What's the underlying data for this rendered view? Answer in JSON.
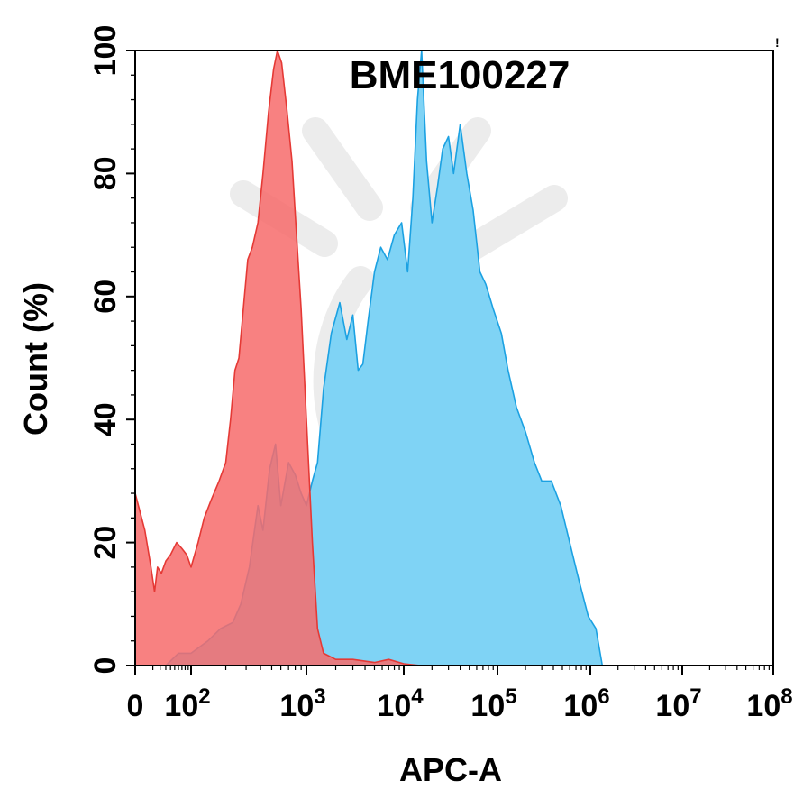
{
  "chart_data": {
    "type": "area",
    "title": "BME100227",
    "xlabel": "APC-A",
    "ylabel": "Count  (%)",
    "x_scale": "biexponential",
    "xlim": [
      0,
      100000000
    ],
    "ylim": [
      0,
      100
    ],
    "y_ticks": [
      "0",
      "20",
      "40",
      "60",
      "80",
      "100"
    ],
    "x_ticks": [
      {
        "value": 0,
        "base": "0",
        "exp": ""
      },
      {
        "value": 100,
        "base": "10",
        "exp": "2"
      },
      {
        "value": 1000,
        "base": "10",
        "exp": "3"
      },
      {
        "value": 10000,
        "base": "10",
        "exp": "4"
      },
      {
        "value": 100000,
        "base": "10",
        "exp": "5"
      },
      {
        "value": 1000000,
        "base": "10",
        "exp": "6"
      },
      {
        "value": 10000000,
        "base": "10",
        "exp": "7"
      },
      {
        "value": 100000000,
        "base": "10",
        "exp": "8"
      }
    ],
    "corner_mark": "!",
    "series": [
      {
        "color": "#e53935",
        "fill": "#f76b6b",
        "points": [
          [
            0,
            28
          ],
          [
            3,
            22
          ],
          [
            8,
            16
          ],
          [
            12,
            12
          ],
          [
            16,
            16
          ],
          [
            22,
            15
          ],
          [
            30,
            17
          ],
          [
            40,
            18
          ],
          [
            55,
            20
          ],
          [
            70,
            19
          ],
          [
            85,
            18
          ],
          [
            100,
            16
          ],
          [
            115,
            20
          ],
          [
            130,
            24
          ],
          [
            150,
            27
          ],
          [
            175,
            30
          ],
          [
            200,
            33
          ],
          [
            220,
            40
          ],
          [
            240,
            48
          ],
          [
            260,
            50
          ],
          [
            290,
            60
          ],
          [
            310,
            66
          ],
          [
            340,
            68
          ],
          [
            380,
            72
          ],
          [
            420,
            80
          ],
          [
            470,
            90
          ],
          [
            520,
            97
          ],
          [
            560,
            100
          ],
          [
            610,
            98
          ],
          [
            680,
            90
          ],
          [
            750,
            82
          ],
          [
            820,
            70
          ],
          [
            900,
            58
          ],
          [
            1000,
            40
          ],
          [
            1150,
            20
          ],
          [
            1300,
            6
          ],
          [
            1500,
            2
          ],
          [
            2000,
            1
          ],
          [
            3000,
            1
          ],
          [
            5000,
            0.5
          ],
          [
            7000,
            1
          ],
          [
            10000,
            0.3
          ],
          [
            15000,
            0
          ]
        ]
      },
      {
        "color": "#1ba1e2",
        "fill": "#7fd3f5",
        "points": [
          [
            0,
            0
          ],
          [
            30,
            0
          ],
          [
            60,
            2
          ],
          [
            100,
            2
          ],
          [
            140,
            4
          ],
          [
            180,
            6
          ],
          [
            230,
            7
          ],
          [
            270,
            10
          ],
          [
            320,
            16
          ],
          [
            380,
            26
          ],
          [
            420,
            22
          ],
          [
            480,
            32
          ],
          [
            540,
            36
          ],
          [
            600,
            26
          ],
          [
            700,
            33
          ],
          [
            800,
            31
          ],
          [
            900,
            28
          ],
          [
            1000,
            26
          ],
          [
            1150,
            30
          ],
          [
            1300,
            33
          ],
          [
            1500,
            45
          ],
          [
            1800,
            54
          ],
          [
            2200,
            59
          ],
          [
            2600,
            53
          ],
          [
            3000,
            57
          ],
          [
            3400,
            48
          ],
          [
            3800,
            49
          ],
          [
            4300,
            56
          ],
          [
            5000,
            64
          ],
          [
            5800,
            68
          ],
          [
            6800,
            66
          ],
          [
            8000,
            70
          ],
          [
            9500,
            72
          ],
          [
            11000,
            64
          ],
          [
            12500,
            76
          ],
          [
            14000,
            92
          ],
          [
            15500,
            100
          ],
          [
            17500,
            82
          ],
          [
            20000,
            72
          ],
          [
            23000,
            78
          ],
          [
            26000,
            84
          ],
          [
            30000,
            86
          ],
          [
            34000,
            80
          ],
          [
            40000,
            88
          ],
          [
            47000,
            80
          ],
          [
            55000,
            74
          ],
          [
            65000,
            64
          ],
          [
            75000,
            62
          ],
          [
            90000,
            58
          ],
          [
            110000,
            54
          ],
          [
            130000,
            48
          ],
          [
            160000,
            42
          ],
          [
            200000,
            38
          ],
          [
            250000,
            33
          ],
          [
            300000,
            30
          ],
          [
            380000,
            30
          ],
          [
            480000,
            26
          ],
          [
            600000,
            20
          ],
          [
            750000,
            14
          ],
          [
            950000,
            8
          ],
          [
            1150000,
            6
          ],
          [
            1350000,
            0
          ]
        ]
      }
    ]
  }
}
